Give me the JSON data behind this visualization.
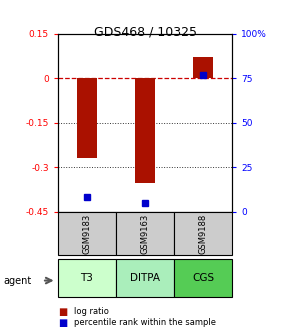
{
  "title": "GDS468 / 10325",
  "samples": [
    "GSM9183",
    "GSM9163",
    "GSM9188"
  ],
  "agents": [
    "T3",
    "DITPA",
    "CGS"
  ],
  "log_ratios": [
    -0.27,
    -0.355,
    0.07
  ],
  "percentile_ranks": [
    0.08,
    0.05,
    0.77
  ],
  "ylim_left": [
    -0.45,
    0.15
  ],
  "ylim_right": [
    0.0,
    1.0
  ],
  "yticks_left": [
    0.15,
    0.0,
    -0.15,
    -0.3,
    -0.45
  ],
  "yticks_right": [
    1.0,
    0.75,
    0.5,
    0.25,
    0.0
  ],
  "ytick_labels_left": [
    "0.15",
    "0",
    "-0.15",
    "-0.3",
    "-0.45"
  ],
  "ytick_labels_right": [
    "100%",
    "75",
    "50",
    "25",
    "0"
  ],
  "bar_color": "#aa1100",
  "dot_color": "#0000cc",
  "agent_colors": [
    "#ccffcc",
    "#aaeebb",
    "#55cc55"
  ],
  "sample_bg": "#cccccc",
  "zero_line_color": "#cc0000",
  "grid_color": "#333333",
  "legend_items": [
    "log ratio",
    "percentile rank within the sample"
  ]
}
